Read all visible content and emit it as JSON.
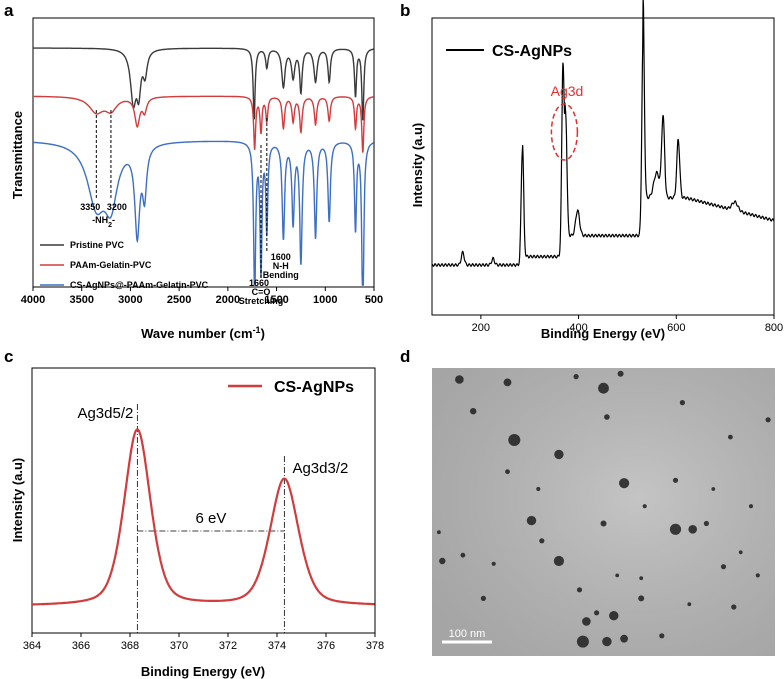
{
  "panels": {
    "a": "a",
    "b": "b",
    "c": "c",
    "d": "d"
  },
  "colors": {
    "black": "#3a3a3a",
    "red": "#d23c3c",
    "blue": "#3d6fc4",
    "ellipse": "#e0302e"
  },
  "chart_data": [
    {
      "id": "a",
      "type": "line",
      "title": "",
      "xlabel": "Wave number (cm",
      "xlabel_sup": "-1",
      "xlabel_end": ")",
      "ylabel": "Transmittance",
      "xlim": [
        4000,
        500
      ],
      "x_reversed": true,
      "ticks": [
        "4000",
        "3500",
        "3000",
        "2500",
        "2000",
        "1500",
        "1000",
        "500"
      ],
      "tick_values": [
        4000,
        3500,
        3000,
        2500,
        2000,
        1500,
        1000,
        500
      ],
      "series": [
        {
          "name": "Pristine PVC",
          "color": "#3a3a3a",
          "baseline": 0.95,
          "peaks": [
            [
              2970,
              0.55,
              35
            ],
            [
              2915,
              0.4,
              25
            ],
            [
              2850,
              0.25,
              25
            ],
            [
              1730,
              0.75,
              12
            ],
            [
              1600,
              0.2,
              15
            ],
            [
              1430,
              0.4,
              20
            ],
            [
              1330,
              0.3,
              20
            ],
            [
              1250,
              0.45,
              15
            ],
            [
              1100,
              0.35,
              20
            ],
            [
              960,
              0.35,
              15
            ],
            [
              690,
              0.5,
              12
            ],
            [
              615,
              0.75,
              12
            ]
          ]
        },
        {
          "name": "PAAm-Gelatin-PVC",
          "color": "#d23c3c",
          "baseline": 0.6,
          "peaks": [
            [
              3350,
              0.22,
              90
            ],
            [
              3200,
              0.18,
              70
            ],
            [
              2930,
              0.4,
              30
            ],
            [
              2855,
              0.2,
              25
            ],
            [
              1725,
              0.75,
              12
            ],
            [
              1660,
              0.5,
              12
            ],
            [
              1600,
              0.35,
              12
            ],
            [
              1430,
              0.45,
              15
            ],
            [
              1330,
              0.35,
              15
            ],
            [
              1250,
              0.5,
              15
            ],
            [
              1100,
              0.4,
              15
            ],
            [
              960,
              0.35,
              15
            ],
            [
              690,
              0.45,
              12
            ],
            [
              615,
              0.8,
              12
            ]
          ]
        },
        {
          "name": "CS-AgNPs@-PAAm-Gelatin-PVC",
          "color": "#3d6fc4",
          "baseline": 0.25,
          "peaks": [
            [
              3350,
              0.38,
              110
            ],
            [
              3200,
              0.34,
              80
            ],
            [
              2930,
              0.55,
              30
            ],
            [
              2855,
              0.3,
              25
            ],
            [
              1725,
              1.0,
              12
            ],
            [
              1660,
              0.8,
              12
            ],
            [
              1600,
              0.55,
              12
            ],
            [
              1430,
              0.6,
              15
            ],
            [
              1330,
              0.5,
              15
            ],
            [
              1250,
              0.75,
              15
            ],
            [
              1100,
              0.6,
              15
            ],
            [
              960,
              0.5,
              15
            ],
            [
              690,
              0.55,
              12
            ],
            [
              615,
              1.1,
              12
            ]
          ]
        }
      ],
      "annotations": [
        {
          "text": "3350",
          "x": 3350
        },
        {
          "text": "-NH",
          "sub": "2",
          "end": "-",
          "x": 3275
        },
        {
          "text": "3200",
          "x": 3200
        },
        {
          "text": "1660",
          "x": 1660
        },
        {
          "text": "C=O",
          "x": 1660
        },
        {
          "text": "Stretching",
          "x": 1660
        },
        {
          "text": "1600",
          "x": 1600
        },
        {
          "text": "N-H",
          "x": 1600
        },
        {
          "text": "Bending",
          "x": 1600
        }
      ]
    },
    {
      "id": "b",
      "type": "line",
      "title": "",
      "xlabel": "Binding Energy (eV)",
      "ylabel": "Intensity (a.u)",
      "xlim": [
        100,
        800
      ],
      "ticks": [
        "200",
        "400",
        "600",
        "800"
      ],
      "tick_values": [
        200,
        400,
        600,
        800
      ],
      "legend": "CS-AgNPs",
      "highlight": "Ag3d",
      "series": [
        {
          "name": "CS-AgNPs",
          "color": "#000000",
          "peaks": [
            [
              163,
              0.06,
              3
            ],
            [
              225,
              0.03,
              3
            ],
            [
              285,
              0.55,
              2.5
            ],
            [
              368,
              0.9,
              2.5
            ],
            [
              374,
              0.52,
              2.5
            ],
            [
              398,
              0.12,
              4
            ],
            [
              532,
              0.95,
              2.5
            ],
            [
              560,
              0.12,
              6
            ],
            [
              573,
              0.38,
              3
            ],
            [
              604,
              0.28,
              3
            ],
            [
              720,
              0.04,
              6
            ]
          ]
        }
      ]
    },
    {
      "id": "c",
      "type": "line",
      "title": "",
      "xlabel": "Binding Energy (eV)",
      "ylabel": "Intensity (a.u)",
      "xlim": [
        364,
        378
      ],
      "ticks": [
        "364",
        "366",
        "368",
        "370",
        "372",
        "374",
        "376",
        "378"
      ],
      "tick_values": [
        364,
        366,
        368,
        370,
        372,
        374,
        376,
        378
      ],
      "legend": "CS-AgNPs",
      "series": [
        {
          "name": "CS-AgNPs",
          "color": "#d23c3c",
          "peaks": [
            [
              368.3,
              1.0,
              0.55
            ],
            [
              374.3,
              0.72,
              0.6
            ]
          ]
        }
      ],
      "labels": [
        "Ag3d5/2",
        "Ag3d3/2"
      ],
      "separation": "6 eV",
      "marker_x": [
        368.3,
        374.3
      ]
    },
    {
      "id": "d",
      "type": "image",
      "scale_bar": "100 nm",
      "particles": [
        [
          0.08,
          0.04,
          0.02
        ],
        [
          0.22,
          0.05,
          0.018
        ],
        [
          0.42,
          0.03,
          0.012
        ],
        [
          0.5,
          0.07,
          0.025
        ],
        [
          0.55,
          0.02,
          0.014
        ],
        [
          0.73,
          0.12,
          0.012
        ],
        [
          0.12,
          0.15,
          0.015
        ],
        [
          0.24,
          0.25,
          0.028
        ],
        [
          0.37,
          0.3,
          0.022
        ],
        [
          0.51,
          0.17,
          0.013
        ],
        [
          0.98,
          0.18,
          0.012
        ],
        [
          0.87,
          0.24,
          0.011
        ],
        [
          0.22,
          0.36,
          0.011
        ],
        [
          0.31,
          0.42,
          0.01
        ],
        [
          0.56,
          0.4,
          0.024
        ],
        [
          0.71,
          0.39,
          0.012
        ],
        [
          0.29,
          0.53,
          0.022
        ],
        [
          0.5,
          0.54,
          0.014
        ],
        [
          0.71,
          0.56,
          0.026
        ],
        [
          0.76,
          0.56,
          0.02
        ],
        [
          0.8,
          0.54,
          0.012
        ],
        [
          0.93,
          0.48,
          0.01
        ],
        [
          0.02,
          0.57,
          0.009
        ],
        [
          0.32,
          0.6,
          0.012
        ],
        [
          0.03,
          0.67,
          0.015
        ],
        [
          0.09,
          0.65,
          0.011
        ],
        [
          0.18,
          0.68,
          0.01
        ],
        [
          0.37,
          0.67,
          0.024
        ],
        [
          0.85,
          0.69,
          0.012
        ],
        [
          0.54,
          0.72,
          0.009
        ],
        [
          0.43,
          0.77,
          0.012
        ],
        [
          0.61,
          0.73,
          0.009
        ],
        [
          0.9,
          0.64,
          0.009
        ],
        [
          0.53,
          0.86,
          0.022
        ],
        [
          0.61,
          0.8,
          0.014
        ],
        [
          0.45,
          0.88,
          0.02
        ],
        [
          0.44,
          0.95,
          0.028
        ],
        [
          0.51,
          0.95,
          0.022
        ],
        [
          0.56,
          0.94,
          0.018
        ],
        [
          0.67,
          0.93,
          0.012
        ],
        [
          0.48,
          0.85,
          0.012
        ],
        [
          0.75,
          0.82,
          0.009
        ],
        [
          0.88,
          0.83,
          0.012
        ],
        [
          0.82,
          0.42,
          0.009
        ],
        [
          0.95,
          0.72,
          0.01
        ],
        [
          0.62,
          0.48,
          0.01
        ],
        [
          0.15,
          0.8,
          0.012
        ]
      ]
    }
  ]
}
